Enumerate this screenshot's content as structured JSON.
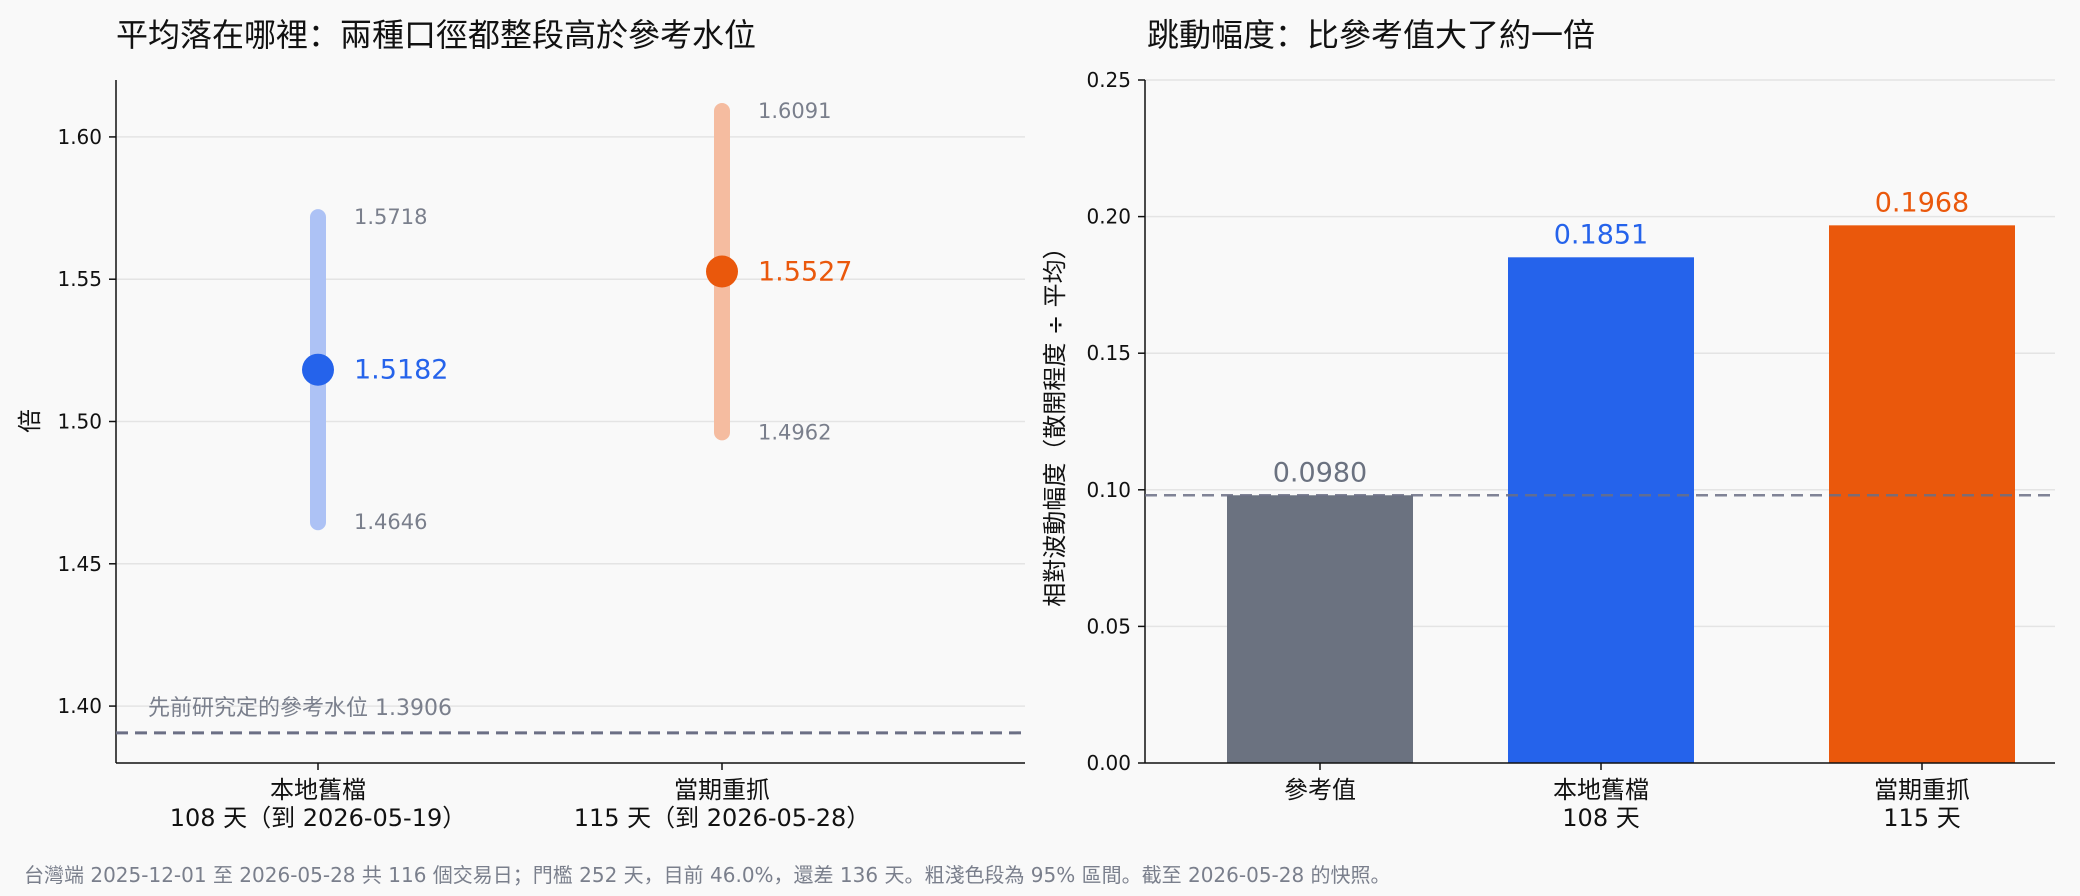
{
  "colors": {
    "local": "#2563eb",
    "local_band": "#adc2f5",
    "recent": "#ea580c",
    "recent_band": "#f5bca0",
    "ref": "#6b7280",
    "ref_line": "#6b6f85",
    "text": "#111111",
    "muted": "#7a7f8c",
    "grid": "#e4e4e4"
  },
  "chart_data": [
    {
      "type": "scatter",
      "title": "平均落在哪裡：兩種口徑都整段高於參考水位",
      "ylabel": "倍",
      "ylim": [
        1.38,
        1.62
      ],
      "yticks": [
        1.4,
        1.45,
        1.5,
        1.55,
        1.6
      ],
      "ytick_labels": [
        "1.40",
        "1.45",
        "1.50",
        "1.55",
        "1.60"
      ],
      "grid": true,
      "categories": [
        {
          "line1": "本地舊檔",
          "line2": "108 天（到 2026-05-19）"
        },
        {
          "line1": "當期重抓",
          "line2": "115 天（到 2026-05-28）"
        }
      ],
      "points": [
        {
          "mean": 1.5182,
          "low": 1.4646,
          "high": 1.5718,
          "mean_label": "1.5182",
          "low_label": "1.4646",
          "high_label": "1.5718"
        },
        {
          "mean": 1.5527,
          "low": 1.4962,
          "high": 1.6091,
          "mean_label": "1.5527",
          "low_label": "1.4962",
          "high_label": "1.6091"
        }
      ],
      "reference": {
        "value": 1.3906,
        "label": "先前研究定的參考水位 1.3906"
      }
    },
    {
      "type": "bar",
      "title": "跳動幅度：比參考值大了約一倍",
      "ylabel": "相對波動幅度（散開程度 ÷ 平均）",
      "ylim": [
        0,
        0.25
      ],
      "yticks": [
        0,
        0.05,
        0.1,
        0.15,
        0.2,
        0.25
      ],
      "ytick_labels": [
        "0.00",
        "0.05",
        "0.10",
        "0.15",
        "0.20",
        "0.25"
      ],
      "grid": true,
      "categories": [
        {
          "line1": "參考值",
          "line2": ""
        },
        {
          "line1": "本地舊檔",
          "line2": "108 天"
        },
        {
          "line1": "當期重抓",
          "line2": "115 天"
        }
      ],
      "values": [
        0.098,
        0.1851,
        0.1968
      ],
      "value_labels": [
        "0.0980",
        "0.1851",
        "0.1968"
      ],
      "reference": {
        "value": 0.098
      }
    }
  ],
  "footer": "台灣端 2025-12-01 至 2026-05-28 共 116 個交易日；門檻 252 天，目前 46.0%，還差 136 天。粗淺色段為 95% 區間。截至 2026-05-28 的快照。"
}
